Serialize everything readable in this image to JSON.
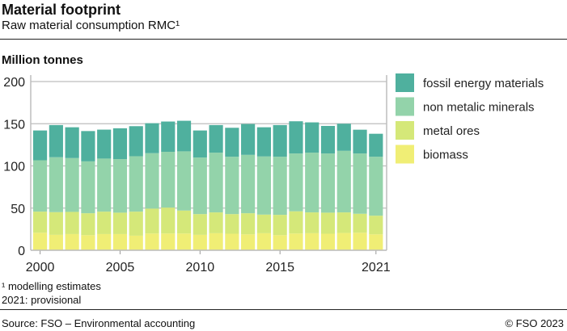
{
  "title": "Material footprint",
  "subtitle": "Raw material consumption RMC¹",
  "unit_label": "Million tonnes",
  "footnotes": [
    "¹  modelling estimates",
    "2021: provisional"
  ],
  "source": "Source: FSO – Environmental accounting",
  "copyright": "© FSO 2023",
  "chart_data": {
    "type": "bar",
    "stacked": true,
    "title": "Material footprint",
    "ylabel": "Million tonnes",
    "ylim": [
      0,
      200
    ],
    "yticks": [
      0,
      50,
      100,
      150,
      200
    ],
    "grid": true,
    "legend_position": "right",
    "categories": [
      2000,
      2001,
      2002,
      2003,
      2004,
      2005,
      2006,
      2007,
      2008,
      2009,
      2010,
      2011,
      2012,
      2013,
      2014,
      2015,
      2016,
      2017,
      2018,
      2019,
      2020,
      2021
    ],
    "xtick_labels": [
      "2000",
      "2005",
      "2010",
      "2015",
      "2021"
    ],
    "series": [
      {
        "name": "biomass",
        "color": "#f0ee75",
        "values": [
          20.8,
          18.3,
          19.2,
          17.9,
          19.2,
          19.2,
          17.3,
          19.9,
          19.9,
          19.9,
          18.3,
          20.2,
          19.6,
          18.9,
          20.2,
          17.9,
          19.9,
          20.2,
          19.6,
          20.5,
          20.8,
          18.9
        ]
      },
      {
        "name": "metal ores",
        "color": "#d5e879",
        "values": [
          25.0,
          26.9,
          26.3,
          26.0,
          26.6,
          25.4,
          28.5,
          29.5,
          30.7,
          27.2,
          24.6,
          24.7,
          23.3,
          25.0,
          22.1,
          24.1,
          26.3,
          24.7,
          25.0,
          24.4,
          22.5,
          22.1
        ]
      },
      {
        "name": "non metalic minerals",
        "color": "#93d3aa",
        "values": [
          60.9,
          65.1,
          63.8,
          61.5,
          62.9,
          63.4,
          65.7,
          65.7,
          66.1,
          70.2,
          67.0,
          70.8,
          68.0,
          69.2,
          68.9,
          68.9,
          68.5,
          70.8,
          70.1,
          73.0,
          71.4,
          69.9
        ]
      },
      {
        "name": "fossil energy materials",
        "color": "#4fb09e",
        "values": [
          35.3,
          38.1,
          36.5,
          35.9,
          34.3,
          36.6,
          35.6,
          35.5,
          35.9,
          36.2,
          32.1,
          32.7,
          34.3,
          36.6,
          34.6,
          37.5,
          38.2,
          35.9,
          32.7,
          32.1,
          28.2,
          27.2
        ]
      }
    ]
  }
}
